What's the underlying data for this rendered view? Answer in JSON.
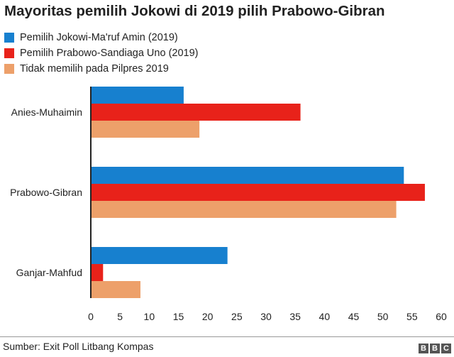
{
  "chart_data": {
    "type": "bar",
    "orientation": "horizontal",
    "title": "Mayoritas pemilih Jokowi di 2019 pilih Prabowo-Gibran",
    "categories": [
      "Anies-Muhaimin",
      "Prabowo-Gibran",
      "Ganjar-Mahfud"
    ],
    "series": [
      {
        "name": "Pemilih Jokowi-Ma'ruf Amin (2019)",
        "color": "#1780cf",
        "values": [
          15.9,
          53.6,
          23.4
        ]
      },
      {
        "name": "Pemilih Prabowo-Sandiaga Uno (2019)",
        "color": "#e8221a",
        "values": [
          35.9,
          57.2,
          2.1
        ]
      },
      {
        "name": "Tidak memilih pada Pilpres 2019",
        "color": "#eda06a",
        "values": [
          18.6,
          52.3,
          8.5
        ]
      }
    ],
    "xlim": [
      0,
      60
    ],
    "xticks": [
      "0",
      "5",
      "10",
      "15",
      "20",
      "25",
      "30",
      "35",
      "40",
      "45",
      "50",
      "55",
      "60"
    ],
    "xlabel": "",
    "ylabel": "",
    "grid": false,
    "legend": "top-left"
  },
  "source": "Sumber: Exit Poll Litbang Kompas",
  "logo": {
    "letters": [
      "B",
      "B",
      "C"
    ]
  }
}
